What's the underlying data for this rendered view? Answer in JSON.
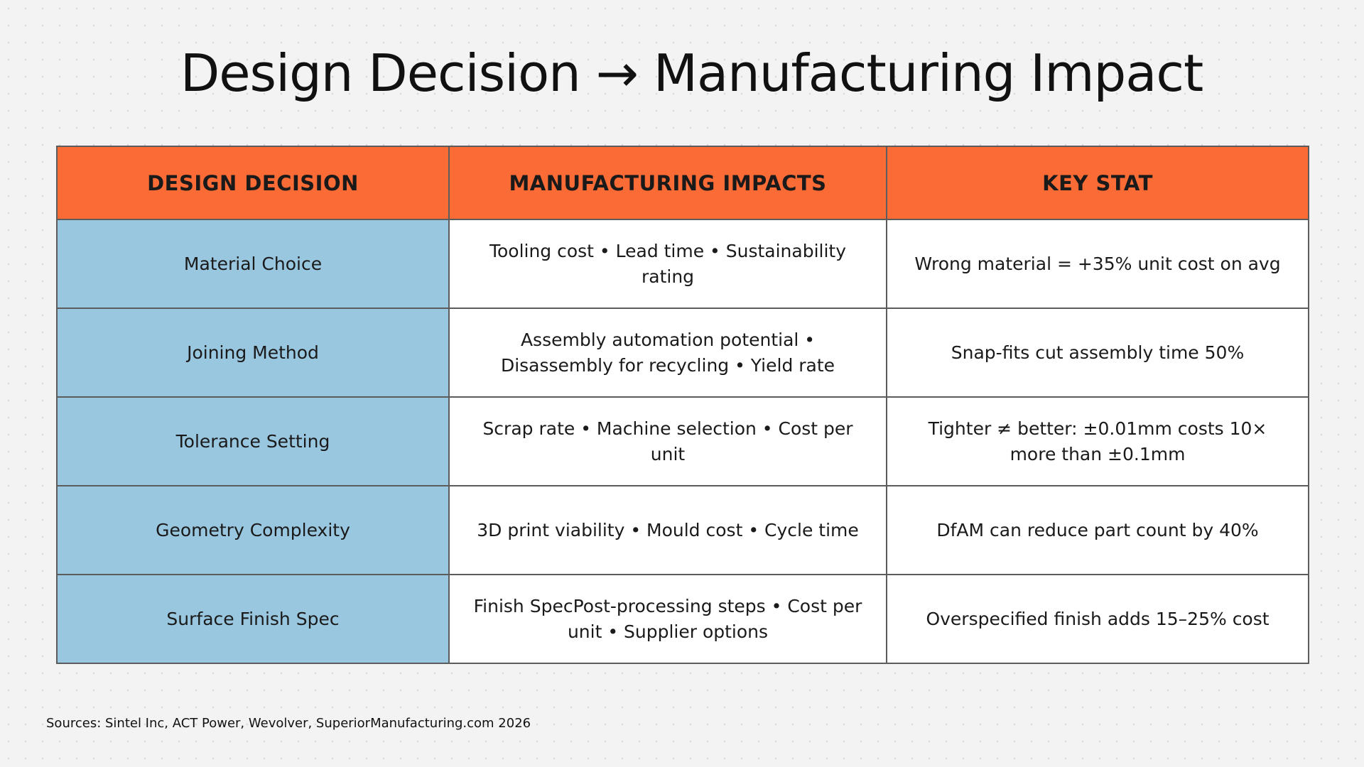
{
  "title": "Design Decision → Manufacturing Impact",
  "table": {
    "headers": [
      "DESIGN DECISION",
      "MANUFACTURING IMPACTS",
      "KEY STAT"
    ],
    "rows": [
      {
        "decision": "Material Choice",
        "impacts": "Tooling cost • Lead time • Sustainability rating",
        "stat": "Wrong material = +35% unit cost on avg"
      },
      {
        "decision": "Joining Method",
        "impacts": "Assembly automation potential • Disassembly for recycling • Yield rate",
        "stat": "Snap-fits cut assembly time 50%"
      },
      {
        "decision": "Tolerance Setting",
        "impacts": "Scrap rate • Machine selection • Cost per unit",
        "stat": "Tighter ≠ better: ±0.01mm costs 10× more than ±0.1mm"
      },
      {
        "decision": "Geometry Complexity",
        "impacts": "3D print viability • Mould cost • Cycle time",
        "stat": "DfAM can reduce part count by 40%"
      },
      {
        "decision": "Surface Finish Spec",
        "impacts": "Finish SpecPost-processing steps • Cost per unit • Supplier options",
        "stat": "Overspecified finish adds 15–25% cost"
      }
    ]
  },
  "sources": "Sources: Sintel Inc, ACT Power, Wevolver, SuperiorManufacturing.com 2026",
  "colors": {
    "header_bg": "#fb6b35",
    "decision_bg": "#9ac7e0",
    "cell_bg": "#ffffff",
    "border": "#5c5c5c"
  }
}
